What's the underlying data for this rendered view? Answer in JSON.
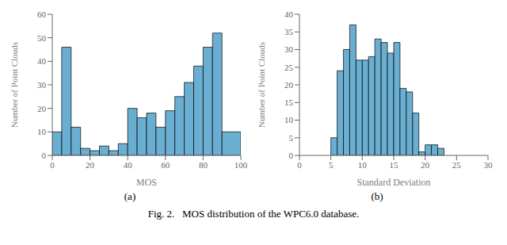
{
  "chart_data": [
    {
      "type": "histogram",
      "bins": [
        0,
        5,
        10,
        15,
        20,
        25,
        30,
        35,
        40,
        45,
        50,
        55,
        60,
        65,
        70,
        75,
        80,
        85,
        90,
        100
      ],
      "values": [
        10,
        46,
        12,
        3,
        2,
        4,
        2,
        5,
        20,
        16,
        18,
        12,
        19,
        25,
        31,
        38,
        46,
        52,
        10
      ],
      "color": "#6aafd2",
      "xlabel": "MOS",
      "ylabel": "Number of Point Clouds",
      "xlim": [
        0,
        100
      ],
      "ylim": [
        0,
        60
      ],
      "xticks": [
        0,
        20,
        40,
        60,
        80,
        100
      ],
      "yticks": [
        0,
        10,
        20,
        30,
        40,
        50,
        60
      ],
      "grid": false,
      "annotations": [
        "(a)"
      ]
    },
    {
      "type": "histogram",
      "bins": [
        5,
        6,
        7,
        8,
        9,
        10,
        11,
        12,
        13,
        14,
        15,
        16,
        17,
        18,
        19,
        20,
        21,
        22,
        23
      ],
      "values": [
        5,
        24,
        30,
        37,
        27,
        27,
        28,
        33,
        32,
        29,
        32,
        19,
        18,
        12,
        1,
        3,
        3,
        2
      ],
      "color": "#6aafd2",
      "xlabel": "Standard Deviation",
      "ylabel": "Number of Point Clouds",
      "xlim": [
        0,
        30
      ],
      "ylim": [
        0,
        40
      ],
      "xticks": [
        0,
        5,
        10,
        15,
        20,
        25,
        30
      ],
      "yticks": [
        0,
        5,
        10,
        15,
        20,
        25,
        30,
        35,
        40
      ],
      "grid": false,
      "annotations": [
        "(b)"
      ]
    }
  ],
  "title": "Fig. 2.   MOS distribution of the WPC6.0 database."
}
